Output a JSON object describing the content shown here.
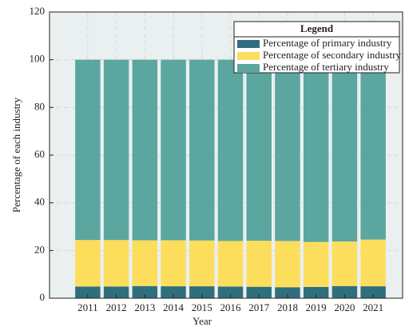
{
  "chart_data": {
    "type": "stacked_bar",
    "xlabel": "Year",
    "ylabel": "Percentage of each industry",
    "categories": [
      "2011",
      "2012",
      "2013",
      "2014",
      "2015",
      "2016",
      "2017",
      "2018",
      "2019",
      "2020",
      "2021"
    ],
    "series": [
      {
        "name": "Percentage of primary industry",
        "color": "#2e6f7e",
        "values": [
          4.9,
          4.9,
          5.1,
          5.0,
          5.0,
          4.9,
          4.8,
          4.6,
          4.7,
          5.1,
          5.0
        ]
      },
      {
        "name": "Percentage of secondary industry",
        "color": "#fddd5c",
        "values": [
          19.5,
          19.5,
          19.2,
          19.3,
          19.2,
          19.1,
          19.3,
          19.4,
          18.9,
          18.7,
          19.6
        ]
      },
      {
        "name": "Percentage of tertiary industry",
        "color": "#5ba69f",
        "values": [
          75.6,
          75.6,
          75.7,
          75.7,
          75.8,
          76.0,
          75.9,
          76.0,
          76.4,
          76.2,
          75.4
        ]
      }
    ],
    "ylim": [
      0,
      120
    ],
    "yticks": [
      0,
      20,
      40,
      60,
      80,
      100,
      120
    ],
    "grid": true,
    "legend_title": "Legend",
    "legend_position": "upper right"
  }
}
